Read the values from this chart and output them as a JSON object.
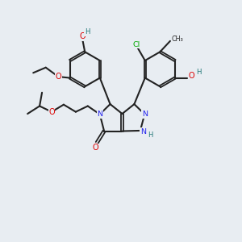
{
  "bg": "#e8edf2",
  "C": "#222222",
  "N": "#2222ee",
  "O": "#dd0000",
  "Cl": "#00aa00",
  "H": "#227777",
  "lw": 1.5,
  "lw2": 1.3,
  "sep": 0.055
}
